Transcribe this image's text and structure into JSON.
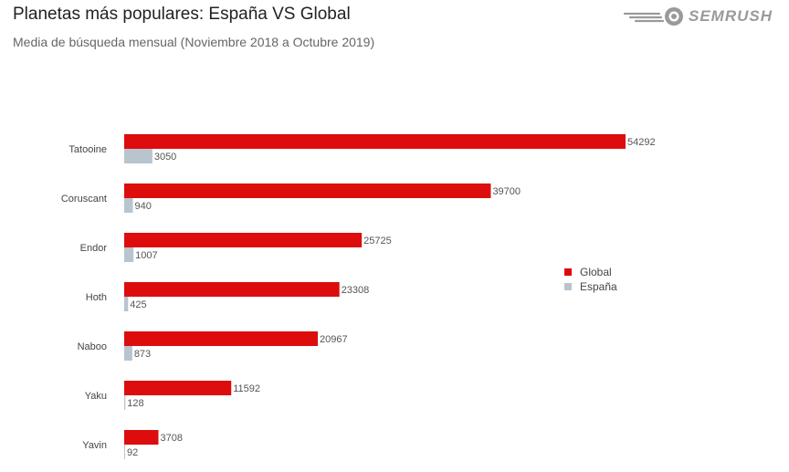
{
  "title": "Planetas más populares: España VS Global",
  "subtitle": "Media de búsqueda mensual (Noviembre 2018 a Octubre 2019)",
  "logo": {
    "text": "SEMRUSH",
    "icon": "semrush-fireball-icon"
  },
  "colors": {
    "global": "#dd0d0d",
    "espana": "#b8c4ce"
  },
  "chart_data": {
    "type": "bar",
    "orientation": "horizontal",
    "categories": [
      "Tatooine",
      "Coruscant",
      "Endor",
      "Hoth",
      "Naboo",
      "Yaku",
      "Yavin"
    ],
    "series": [
      {
        "name": "Global",
        "values": [
          54292,
          39700,
          25725,
          23308,
          20967,
          11592,
          3708
        ]
      },
      {
        "name": "España",
        "values": [
          3050,
          940,
          1007,
          425,
          873,
          128,
          92
        ]
      }
    ],
    "xlim": [
      0,
      54292
    ],
    "grid": false,
    "legend": "right"
  }
}
